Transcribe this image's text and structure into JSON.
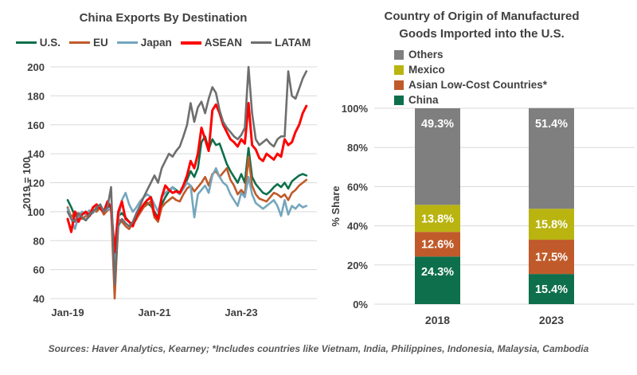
{
  "footer": {
    "text": "Sources: Haver Analytics, Kearney; *Includes countries like Vietnam, India, Philippines, Indonesia, Malaysia, Cambodia"
  },
  "colors": {
    "text": "#404040",
    "grid": "#d9d9d9",
    "bar_label": "#ffffff"
  },
  "chart_data": [
    {
      "type": "line",
      "title": "China Exports By Destination",
      "ylabel": "2019 = 100",
      "ylim": [
        40,
        200
      ],
      "yticks": [
        200,
        180,
        160,
        140,
        120,
        100,
        80,
        60,
        40
      ],
      "xtick_labels": [
        "Jan-19",
        "Jan-21",
        "Jan-23"
      ],
      "xtick_indices": [
        0,
        24,
        48
      ],
      "grid": true,
      "legend_position": "top",
      "x": [
        "Jan-19",
        "Feb-19",
        "Mar-19",
        "Apr-19",
        "May-19",
        "Jun-19",
        "Jul-19",
        "Aug-19",
        "Sep-19",
        "Oct-19",
        "Nov-19",
        "Dec-19",
        "Jan-20",
        "Feb-20",
        "Mar-20",
        "Apr-20",
        "May-20",
        "Jun-20",
        "Jul-20",
        "Aug-20",
        "Sep-20",
        "Oct-20",
        "Nov-20",
        "Dec-20",
        "Jan-21",
        "Feb-21",
        "Mar-21",
        "Apr-21",
        "May-21",
        "Jun-21",
        "Jul-21",
        "Aug-21",
        "Sep-21",
        "Oct-21",
        "Nov-21",
        "Dec-21",
        "Jan-22",
        "Feb-22",
        "Mar-22",
        "Apr-22",
        "May-22",
        "Jun-22",
        "Jul-22",
        "Aug-22",
        "Sep-22",
        "Oct-22",
        "Nov-22",
        "Dec-22",
        "Jan-23",
        "Feb-23",
        "Mar-23",
        "Apr-23",
        "May-23",
        "Jun-23",
        "Jul-23",
        "Aug-23",
        "Sep-23",
        "Oct-23",
        "Nov-23",
        "Dec-23",
        "Jan-24",
        "Feb-24",
        "Mar-24",
        "Apr-24",
        "May-24",
        "Jun-24",
        "Jul-24"
      ],
      "series": [
        {
          "name": "U.S.",
          "color": "#0e6f4c",
          "values": [
            108,
            103,
            97,
            99,
            96,
            94,
            97,
            100,
            102,
            104,
            99,
            103,
            104,
            67,
            97,
            99,
            96,
            93,
            91,
            95,
            100,
            104,
            106,
            104,
            100,
            96,
            105,
            110,
            114,
            117,
            115,
            113,
            117,
            122,
            128,
            124,
            130,
            148,
            152,
            143,
            150,
            146,
            147,
            140,
            133,
            128,
            124,
            120,
            126,
            120,
            144,
            124,
            119,
            116,
            113,
            112,
            114,
            117,
            119,
            117,
            120,
            116,
            121,
            123,
            125,
            126,
            125
          ]
        },
        {
          "name": "EU",
          "color": "#c05a2a",
          "values": [
            103,
            96,
            100,
            98,
            95,
            97,
            99,
            101,
            100,
            103,
            98,
            101,
            102,
            40,
            95,
            93,
            90,
            88,
            92,
            95,
            99,
            103,
            105,
            107,
            96,
            93,
            103,
            106,
            108,
            110,
            108,
            107,
            112,
            116,
            118,
            114,
            117,
            120,
            124,
            118,
            126,
            128,
            124,
            127,
            130,
            122,
            118,
            112,
            115,
            112,
            138,
            118,
            112,
            109,
            108,
            107,
            110,
            113,
            112,
            110,
            112,
            108,
            113,
            115,
            118,
            120,
            122
          ]
        },
        {
          "name": "Japan",
          "color": "#74a6bd",
          "values": [
            102,
            95,
            88,
            97,
            100,
            98,
            101,
            99,
            103,
            105,
            100,
            102,
            101,
            60,
            95,
            108,
            113,
            105,
            100,
            103,
            107,
            110,
            112,
            110,
            105,
            100,
            110,
            113,
            115,
            117,
            114,
            112,
            116,
            120,
            118,
            96,
            112,
            115,
            118,
            113,
            125,
            130,
            124,
            120,
            118,
            112,
            108,
            104,
            113,
            110,
            124,
            112,
            106,
            104,
            102,
            104,
            106,
            108,
            104,
            97,
            108,
            98,
            104,
            102,
            105,
            103,
            104
          ]
        },
        {
          "name": "ASEAN",
          "color": "#ff0000",
          "values": [
            95,
            86,
            100,
            93,
            98,
            100,
            97,
            103,
            105,
            102,
            100,
            107,
            103,
            72,
            100,
            107,
            95,
            93,
            90,
            97,
            101,
            105,
            108,
            110,
            98,
            95,
            110,
            118,
            115,
            113,
            114,
            113,
            118,
            125,
            135,
            130,
            140,
            158,
            150,
            142,
            170,
            174,
            168,
            160,
            155,
            150,
            148,
            145,
            150,
            147,
            175,
            146,
            143,
            137,
            135,
            140,
            138,
            136,
            140,
            138,
            150,
            146,
            148,
            155,
            160,
            168,
            173
          ]
        },
        {
          "name": "LATAM",
          "color": "#6e6e6e",
          "values": [
            100,
            95,
            93,
            99,
            96,
            94,
            98,
            100,
            103,
            105,
            100,
            103,
            117,
            50,
            90,
            95,
            92,
            90,
            93,
            99,
            104,
            110,
            115,
            120,
            125,
            120,
            130,
            135,
            140,
            138,
            142,
            145,
            152,
            160,
            175,
            162,
            172,
            176,
            168,
            178,
            186,
            182,
            170,
            162,
            158,
            155,
            152,
            150,
            153,
            158,
            200,
            168,
            150,
            146,
            148,
            150,
            147,
            145,
            150,
            152,
            152,
            197,
            180,
            178,
            185,
            192,
            197
          ]
        }
      ]
    },
    {
      "type": "bar",
      "stacked": true,
      "title": "Country of Origin of Manufactured Goods Imported into the U.S.",
      "title_lines": [
        "Country of Origin of Manufactured",
        "Goods Imported into the U.S."
      ],
      "ylabel": "% Share",
      "ylim": [
        0,
        100
      ],
      "ytick_labels": [
        "0%",
        "20%",
        "40%",
        "60%",
        "80%",
        "100%"
      ],
      "yticks": [
        0,
        20,
        40,
        60,
        80,
        100
      ],
      "categories": [
        "2018",
        "2023"
      ],
      "grid": true,
      "legend_position": "top-left",
      "legend_order": [
        "Others",
        "Mexico",
        "Asian Low-Cost Countries*",
        "China"
      ],
      "series": [
        {
          "name": "China",
          "color": "#0e6f4c",
          "values": [
            24.3,
            15.4
          ]
        },
        {
          "name": "Asian Low-Cost Countries*",
          "color": "#c05a2a",
          "values": [
            12.6,
            17.5
          ]
        },
        {
          "name": "Mexico",
          "color": "#b9b410",
          "values": [
            13.8,
            15.8
          ]
        },
        {
          "name": "Others",
          "color": "#7f7f7f",
          "values": [
            49.3,
            51.4
          ]
        }
      ],
      "labels": [
        [
          "24.3%",
          "12.6%",
          "13.8%",
          "49.3%"
        ],
        [
          "15.4%",
          "17.5%",
          "15.8%",
          "51.4%"
        ]
      ]
    }
  ]
}
